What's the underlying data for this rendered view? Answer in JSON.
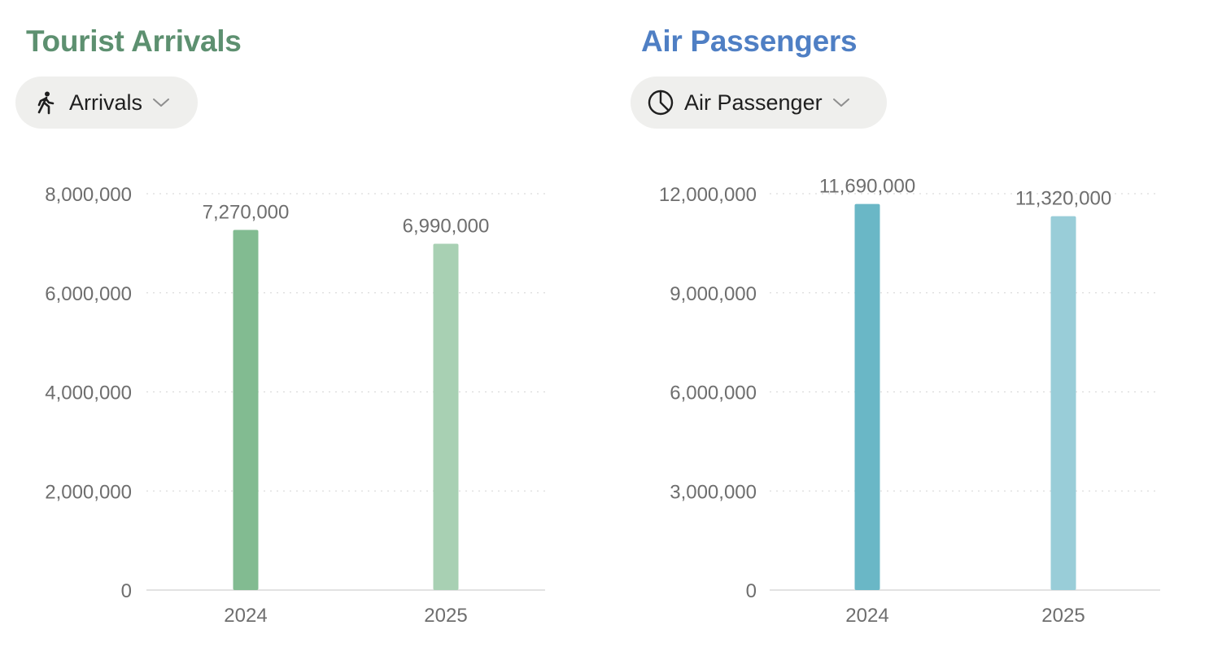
{
  "panels": [
    {
      "title": "Tourist Arrivals",
      "title_color": "#5d9070",
      "dropdown": {
        "icon": "walking-person-icon",
        "label": "Arrivals"
      },
      "chart_data": {
        "type": "bar",
        "categories": [
          "2024",
          "2025"
        ],
        "values": [
          7270000,
          6990000
        ],
        "value_labels": [
          "7,270,000",
          "6,990,000"
        ],
        "bar_colors": [
          "#82bb91",
          "#a8d0b3"
        ],
        "ylim": [
          0,
          8000000
        ],
        "yticks": [
          0,
          2000000,
          4000000,
          6000000,
          8000000
        ],
        "ytick_labels": [
          "0",
          "2,000,000",
          "4,000,000",
          "6,000,000",
          "8,000,000"
        ],
        "grid": true
      }
    },
    {
      "title": "Air Passengers",
      "title_color": "#4f7fc4",
      "dropdown": {
        "icon": "pie-chart-icon",
        "label": "Air Passenger"
      },
      "chart_data": {
        "type": "bar",
        "categories": [
          "2024",
          "2025"
        ],
        "values": [
          11690000,
          11320000
        ],
        "value_labels": [
          "11,690,000",
          "11,320,000"
        ],
        "bar_colors": [
          "#6ab7c6",
          "#99cdd8"
        ],
        "ylim": [
          0,
          12000000
        ],
        "yticks": [
          0,
          3000000,
          6000000,
          9000000,
          12000000
        ],
        "ytick_labels": [
          "0",
          "3,000,000",
          "6,000,000",
          "9,000,000",
          "12,000,000"
        ],
        "grid": true
      }
    }
  ]
}
